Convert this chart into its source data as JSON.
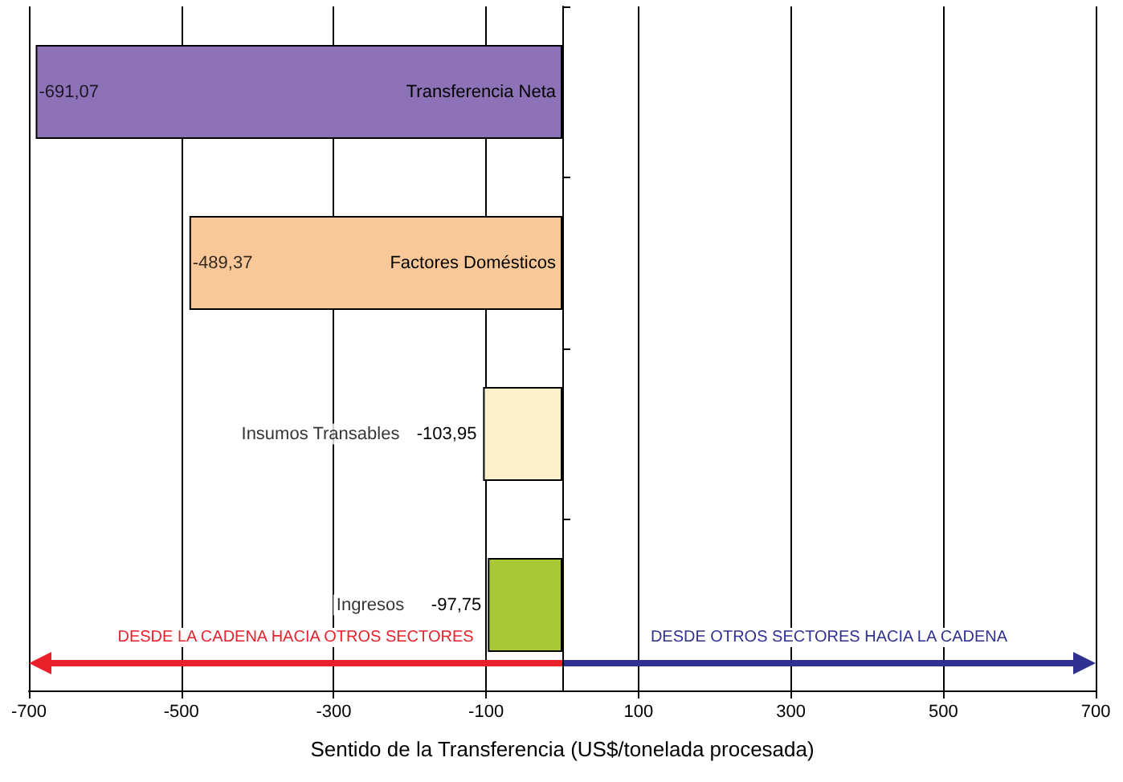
{
  "chart_data": {
    "type": "bar",
    "orientation": "horizontal",
    "xlabel": "Sentido de la Transferencia (US$/tonelada procesada)",
    "categories": [
      "Transferencia Neta",
      "Factores Domésticos",
      "Insumos Transables",
      "Ingresos"
    ],
    "values": [
      -691.07,
      -489.37,
      -103.95,
      -97.75
    ],
    "colors": [
      "#8e72b8",
      "#f8c898",
      "#fbf0c8",
      "#a8c838"
    ],
    "value_labels": [
      "-691,07",
      "-489,37",
      "-103,95",
      "-97,75"
    ],
    "xlim": [
      -700,
      700
    ],
    "xticks": [
      -700,
      -500,
      -300,
      -100,
      100,
      300,
      500,
      700
    ],
    "grid": "x",
    "annotations": [
      "DESDE LA CADENA HACIA OTROS SECTORES",
      "DESDE OTROS SECTORES HACIA LA CADENA"
    ]
  }
}
